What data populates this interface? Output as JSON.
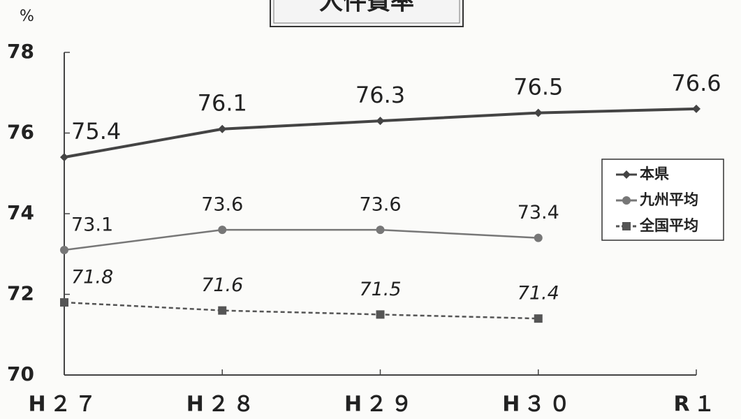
{
  "chart_data": {
    "type": "line",
    "title": "人件費率",
    "y_unit": "%",
    "categories": [
      "H２７",
      "H２８",
      "H２９",
      "H３０",
      "R１"
    ],
    "ylim": [
      70,
      78
    ],
    "yticks": [
      70,
      72,
      74,
      76,
      78
    ],
    "legend": "right",
    "series": [
      {
        "name": "本県",
        "color": "#444444",
        "marker": "diamond",
        "dash": false,
        "italic_labels": false,
        "values": [
          75.4,
          76.1,
          76.3,
          76.5,
          76.6
        ]
      },
      {
        "name": "九州平均",
        "color": "#777777",
        "marker": "circle",
        "dash": false,
        "italic_labels": false,
        "values": [
          73.1,
          73.6,
          73.6,
          73.4,
          null
        ]
      },
      {
        "name": "全国平均",
        "color": "#555555",
        "marker": "square",
        "dash": true,
        "italic_labels": true,
        "values": [
          71.8,
          71.6,
          71.5,
          71.4,
          null
        ]
      }
    ]
  }
}
